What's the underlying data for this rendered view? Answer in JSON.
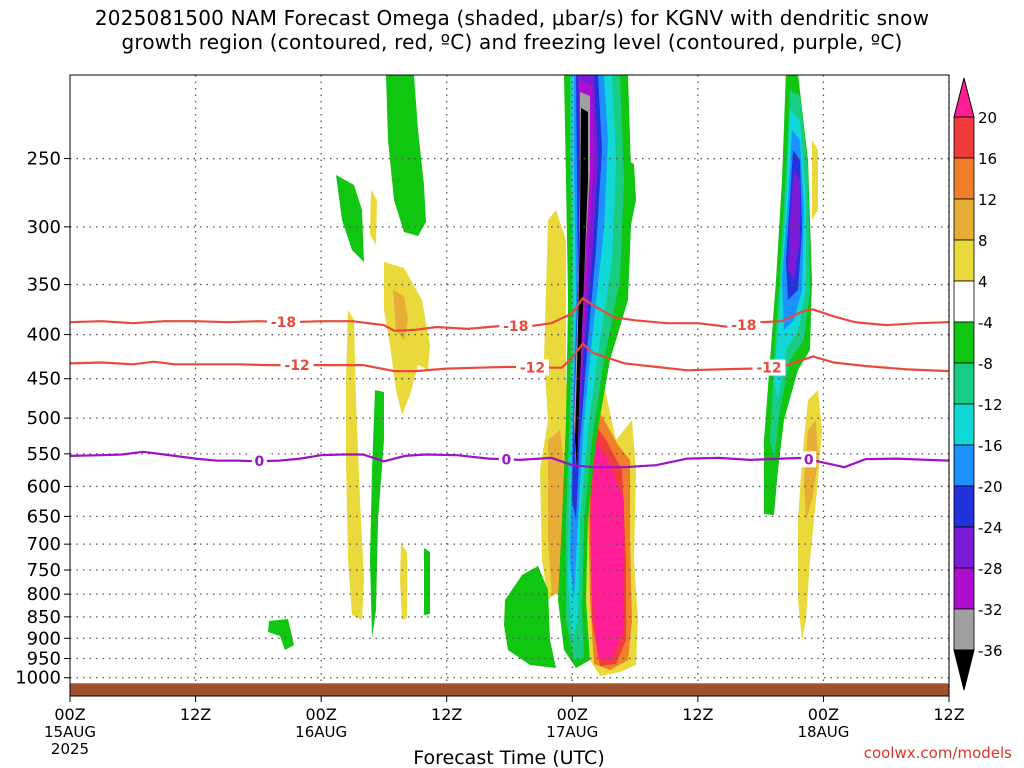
{
  "title_line1": "2025081500 NAM Forecast Omega (shaded, μbar/s) for KGNV with dendritic snow",
  "title_line2": "growth region (contoured, red, ºC) and freezing level (contoured, purple, ºC)",
  "credit": "coolwx.com/models",
  "chart_data": {
    "type": "time-height cross section",
    "title": "2025081500 NAM Forecast Omega (shaded, μbar/s) for KGNV with dendritic snow growth region (contoured, red, ºC) and freezing level (contoured, purple, ºC)",
    "xlabel": "Forecast Time (UTC)",
    "ylabel": "",
    "x_ticks": [
      {
        "hour": 0,
        "label": "00Z",
        "date": "15AUG",
        "year": "2025"
      },
      {
        "hour": 12,
        "label": "12Z"
      },
      {
        "hour": 24,
        "label": "00Z",
        "date": "16AUG"
      },
      {
        "hour": 36,
        "label": "12Z"
      },
      {
        "hour": 48,
        "label": "00Z",
        "date": "17AUG"
      },
      {
        "hour": 60,
        "label": "12Z"
      },
      {
        "hour": 72,
        "label": "00Z",
        "date": "18AUG"
      },
      {
        "hour": 84,
        "label": "12Z"
      }
    ],
    "xlim": [
      0,
      84
    ],
    "y_ticks": [
      250,
      300,
      350,
      400,
      450,
      500,
      550,
      600,
      650,
      700,
      750,
      800,
      850,
      900,
      950,
      1000
    ],
    "ylim": [
      1050,
      200
    ],
    "y_scale": "log-pressure",
    "grid": true,
    "colorbar": {
      "labels": [
        "20",
        "16",
        "12",
        "8",
        "4",
        "-4",
        "-8",
        "-12",
        "-16",
        "-20",
        "-24",
        "-28",
        "-32",
        "-36"
      ],
      "colors": [
        "#ff1e96",
        "#f03c3c",
        "#ef7f2a",
        "#e8ad37",
        "#e9d93a",
        "#ffffff",
        "#11c611",
        "#18cc83",
        "#0fd8d6",
        "#1c91ff",
        "#2233dd",
        "#7b1bd8",
        "#ad0fcf",
        "#a0a0a0",
        "#000000"
      ],
      "min_color": "#000000",
      "max_color": "#ff1e96"
    },
    "contours": [
      {
        "level": -18,
        "label": "-18",
        "color": "#e84a3e",
        "points": [
          [
            0,
            387
          ],
          [
            3,
            386
          ],
          [
            6,
            388
          ],
          [
            9,
            386
          ],
          [
            12,
            386
          ],
          [
            15,
            387
          ],
          [
            18,
            386
          ],
          [
            21,
            387
          ],
          [
            24,
            386
          ],
          [
            27,
            386
          ],
          [
            30,
            390
          ],
          [
            31,
            396
          ],
          [
            33,
            395
          ],
          [
            35,
            392
          ],
          [
            38,
            394
          ],
          [
            41,
            391
          ],
          [
            44,
            391
          ],
          [
            46,
            388
          ],
          [
            48,
            378
          ],
          [
            49,
            363
          ],
          [
            50,
            370
          ],
          [
            52,
            382
          ],
          [
            54,
            385
          ],
          [
            57,
            388
          ],
          [
            60,
            388
          ],
          [
            63,
            392
          ],
          [
            66,
            387
          ],
          [
            68,
            386
          ],
          [
            70,
            376
          ],
          [
            71,
            374
          ],
          [
            73,
            381
          ],
          [
            75,
            387
          ],
          [
            78,
            390
          ],
          [
            81,
            388
          ],
          [
            84,
            387
          ]
        ],
        "label_positions": [
          20.4,
          42.6,
          64.4
        ]
      },
      {
        "level": -12,
        "label": "-12",
        "color": "#e84a3e",
        "points": [
          [
            0,
            432
          ],
          [
            3,
            431
          ],
          [
            6,
            433
          ],
          [
            8,
            430
          ],
          [
            10,
            433
          ],
          [
            13,
            433
          ],
          [
            16,
            433
          ],
          [
            19,
            434
          ],
          [
            22,
            434
          ],
          [
            25,
            434
          ],
          [
            28,
            434
          ],
          [
            31,
            441
          ],
          [
            33,
            441
          ],
          [
            36,
            438
          ],
          [
            39,
            437
          ],
          [
            42,
            436
          ],
          [
            45,
            437
          ],
          [
            47,
            437
          ],
          [
            48,
            425
          ],
          [
            49,
            410
          ],
          [
            50,
            420
          ],
          [
            53,
            432
          ],
          [
            56,
            436
          ],
          [
            59,
            440
          ],
          [
            62,
            439
          ],
          [
            65,
            438
          ],
          [
            68,
            436
          ],
          [
            70,
            428
          ],
          [
            71,
            424
          ],
          [
            73,
            431
          ],
          [
            76,
            435
          ],
          [
            80,
            439
          ],
          [
            84,
            441
          ]
        ],
        "label_positions": [
          21.7,
          44.2,
          66.8
        ]
      },
      {
        "level": 0,
        "label": "0",
        "color": "#9e13c8",
        "points": [
          [
            0,
            553
          ],
          [
            3,
            552
          ],
          [
            5,
            551
          ],
          [
            7,
            547
          ],
          [
            9,
            551
          ],
          [
            12,
            557
          ],
          [
            14,
            560
          ],
          [
            16,
            560
          ],
          [
            18,
            561
          ],
          [
            20,
            560
          ],
          [
            22,
            557
          ],
          [
            24,
            552
          ],
          [
            26,
            551
          ],
          [
            28,
            551
          ],
          [
            30,
            561
          ],
          [
            32,
            553
          ],
          [
            34,
            551
          ],
          [
            37,
            552
          ],
          [
            40,
            557
          ],
          [
            43,
            559
          ],
          [
            46,
            556
          ],
          [
            48,
            567
          ],
          [
            50,
            570
          ],
          [
            53,
            570
          ],
          [
            56,
            567
          ],
          [
            59,
            557
          ],
          [
            62,
            556
          ],
          [
            65,
            559
          ],
          [
            68,
            557
          ],
          [
            70,
            556
          ],
          [
            72,
            563
          ],
          [
            74,
            570
          ],
          [
            76,
            558
          ],
          [
            79,
            557
          ],
          [
            82,
            559
          ],
          [
            84,
            560
          ]
        ],
        "label_positions": [
          18.1,
          41.7,
          70.6
        ]
      }
    ],
    "ground_top_hpa": 1015
  }
}
